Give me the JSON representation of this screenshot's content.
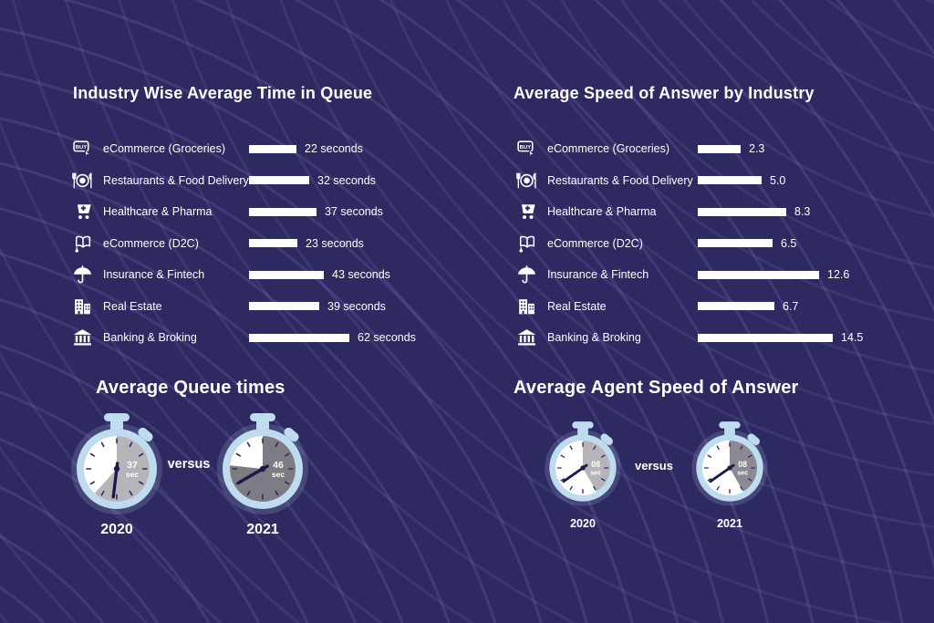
{
  "colors": {
    "background": "#2d2a62",
    "wave_line": "#8880c4",
    "text": "#ffffff",
    "bar": "#ffffff",
    "watch_body": "#bedcee",
    "watch_face": "#ffffff",
    "watch_hand": "#1c1950",
    "wedge_light": "#b4b4b9",
    "wedge_dark": "#7c7c82"
  },
  "chart_data": [
    {
      "type": "bar",
      "orientation": "horizontal",
      "title": "Industry Wise Average Time in Queue",
      "categories": [
        "eCommerce (Groceries)",
        "Restaurants & Food Delivery",
        "Healthcare & Pharma",
        "eCommerce (D2C)",
        "Insurance & Fintech",
        "Real Estate",
        "Banking & Broking"
      ],
      "values": [
        22,
        32,
        37,
        23,
        43,
        39,
        62
      ],
      "value_labels": [
        "22 seconds",
        "32 seconds",
        "37 seconds",
        "23 seconds",
        "43 seconds",
        "39 seconds",
        "62 seconds"
      ],
      "unit": "seconds",
      "icons": [
        "buy-tag-icon",
        "restaurant-icon",
        "medical-cart-icon",
        "open-box-cart-icon",
        "umbrella-icon",
        "buildings-icon",
        "bank-icon"
      ],
      "bar_color": "#ffffff",
      "xlim": [
        0,
        62
      ],
      "grid": false,
      "legend": "none"
    },
    {
      "type": "bar",
      "orientation": "horizontal",
      "title": "Average Speed of Answer by Industry",
      "categories": [
        "eCommerce (Groceries)",
        "Restaurants & Food Delivery",
        "Healthcare & Pharma",
        "eCommerce (D2C)",
        "Insurance & Fintech",
        "Real Estate",
        "Banking & Broking"
      ],
      "values": [
        2.3,
        5.0,
        8.3,
        6.5,
        12.6,
        6.7,
        14.5
      ],
      "value_labels": [
        "2.3",
        "5.0",
        "8.3",
        "6.5",
        "12.6",
        "6.7",
        "14.5"
      ],
      "unit": "",
      "icons": [
        "buy-tag-icon",
        "restaurant-icon",
        "medical-cart-icon",
        "open-box-cart-icon",
        "umbrella-icon",
        "buildings-icon",
        "bank-icon"
      ],
      "bar_color": "#ffffff",
      "xlim": [
        0,
        14.5
      ],
      "grid": false,
      "legend": "none"
    }
  ],
  "comparisons": [
    {
      "title": "Average Queue times",
      "versus_label": "versus",
      "items": [
        {
          "year": "2020",
          "value_label": "37",
          "unit_label": "sec",
          "wedge_deg": 222,
          "hand_deg": 187,
          "wedge_color": "#b4b4b9"
        },
        {
          "year": "2021",
          "value_label": "46",
          "unit_label": "sec",
          "wedge_deg": 276,
          "hand_deg": 240,
          "wedge_color": "#7c7c82"
        }
      ]
    },
    {
      "title": "Average Agent Speed of Answer",
      "versus_label": "versus",
      "items": [
        {
          "year": "2020",
          "value_label": "08",
          "unit_label": "sec",
          "wedge_deg": 150,
          "hand_deg": 235,
          "wedge_color": "#b4b4b9"
        },
        {
          "year": "2021",
          "value_label": "08",
          "unit_label": "sec",
          "wedge_deg": 150,
          "hand_deg": 235,
          "wedge_color": "#8a8a90"
        }
      ]
    }
  ]
}
